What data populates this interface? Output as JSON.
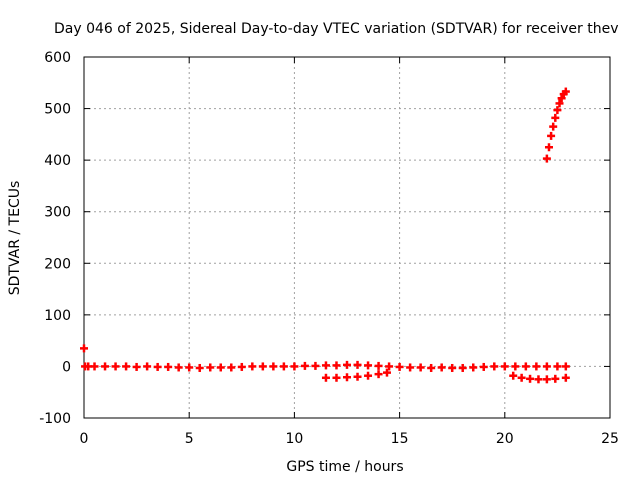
{
  "chart_data": {
    "type": "scatter",
    "title": "Day 046 of 2025, Sidereal Day-to-day VTEC variation (SDTVAR) for receiver thev",
    "xlabel": "GPS time / hours",
    "ylabel": "SDTVAR / TECUs",
    "xlim": [
      0,
      25
    ],
    "ylim": [
      -100,
      600
    ],
    "xticks": [
      "0",
      "5",
      "10",
      "15",
      "20",
      "25"
    ],
    "yticks": [
      "-100",
      "0",
      "100",
      "200",
      "300",
      "400",
      "500",
      "600"
    ],
    "grid": true,
    "series": [
      {
        "color": "#ff0000",
        "marker": "plus",
        "x": [
          0.0,
          0.05,
          0.2,
          0.5,
          1.0,
          1.5,
          2.0,
          2.5,
          3.0,
          3.5,
          4.0,
          4.5,
          5.0,
          5.5,
          6.0,
          6.5,
          7.0,
          7.5,
          8.0,
          8.5,
          9.0,
          9.5,
          10.0,
          10.5,
          11.0,
          11.5,
          12.0,
          12.5,
          13.0,
          13.5,
          14.0,
          14.5,
          15.0,
          15.5,
          16.0,
          16.5,
          17.0,
          17.5,
          18.0,
          18.5,
          19.0,
          19.5,
          20.0,
          20.5,
          21.0,
          21.5,
          22.0,
          22.5,
          22.9,
          11.5,
          12.0,
          12.5,
          13.0,
          13.5,
          14.0,
          14.4,
          20.4,
          20.8,
          21.2,
          21.6,
          22.0,
          22.4,
          22.9,
          22.0,
          22.1,
          22.2,
          22.3,
          22.4,
          22.5,
          22.6,
          22.7,
          22.8,
          22.9
        ],
        "y": [
          35,
          0,
          0,
          0,
          0,
          0,
          0,
          -1,
          0,
          -1,
          -1,
          -2,
          -2,
          -3,
          -2,
          -2,
          -2,
          -1,
          0,
          0,
          0,
          0,
          0,
          1,
          1,
          2,
          2,
          3,
          3,
          2,
          1,
          0,
          -1,
          -2,
          -2,
          -3,
          -2,
          -3,
          -3,
          -2,
          -1,
          0,
          0,
          0,
          0,
          0,
          0,
          0,
          0,
          -22,
          -22,
          -21,
          -20,
          -18,
          -15,
          -12,
          -18,
          -22,
          -24,
          -25,
          -25,
          -24,
          -22,
          403,
          425,
          447,
          465,
          482,
          497,
          510,
          520,
          528,
          533
        ]
      }
    ]
  }
}
